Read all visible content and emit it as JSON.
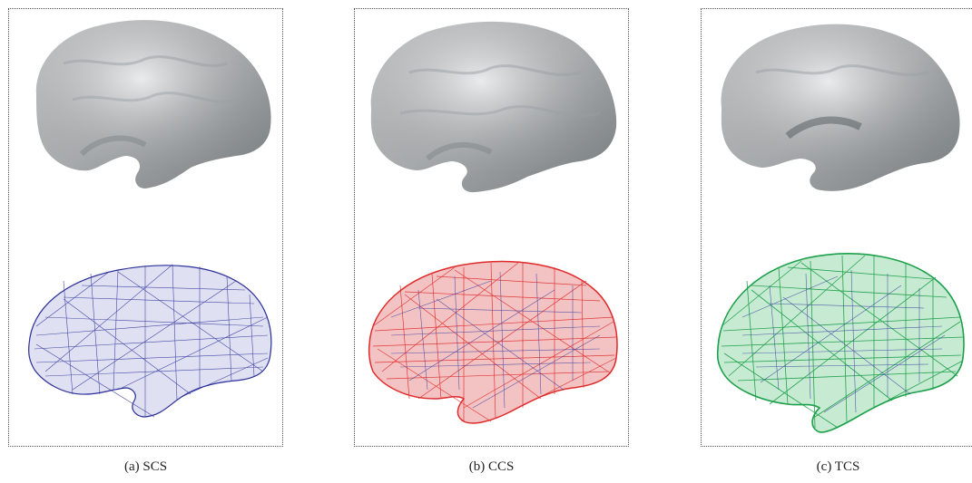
{
  "figure": {
    "panels": [
      {
        "id": "a",
        "caption": "(a) SCS",
        "surface_icon": "brain-surface-icon",
        "mesh_colors": [
          "#2b2f9a"
        ]
      },
      {
        "id": "b",
        "caption": "(b) CCS",
        "surface_icon": "brain-surface-icon",
        "mesh_colors": [
          "#2b2f9a",
          "#e02a2a"
        ]
      },
      {
        "id": "c",
        "caption": "(c) TCS",
        "surface_icon": "brain-surface-icon",
        "mesh_colors": [
          "#2b2f9a",
          "#1ca04a"
        ]
      }
    ]
  }
}
